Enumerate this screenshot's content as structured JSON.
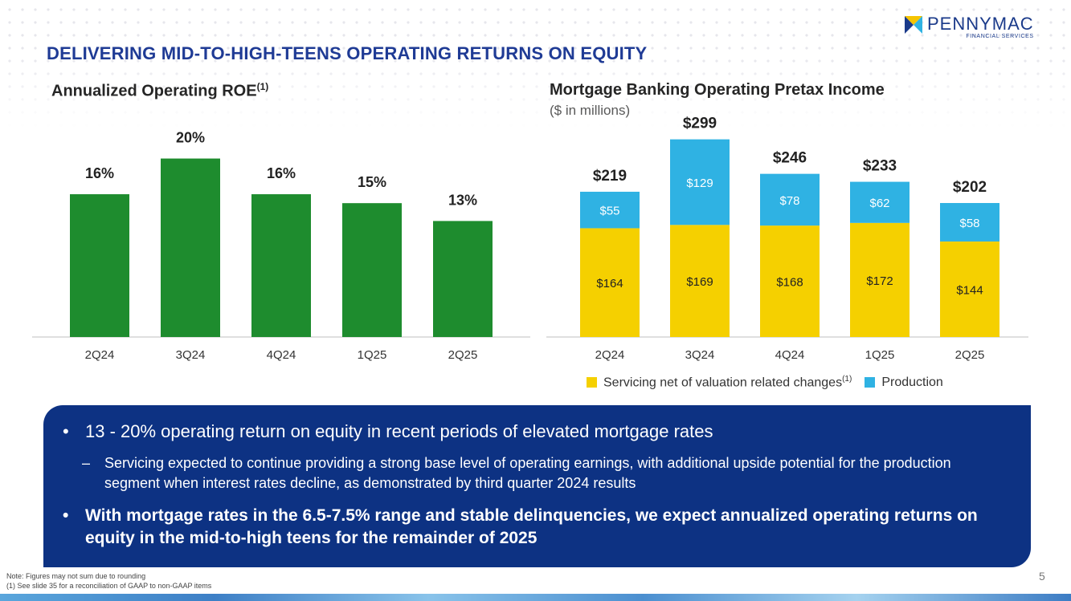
{
  "logo": {
    "name": "PENNYMAC",
    "sub": "FINANCIAL SERVICES"
  },
  "title": "DELIVERING MID-TO-HIGH-TEENS OPERATING RETURNS ON EQUITY",
  "colors": {
    "green": "#1e8c2e",
    "yellow": "#f5d000",
    "blue": "#2fb2e3",
    "navy": "#0d3283",
    "title": "#1f3b95"
  },
  "chart_data": [
    {
      "type": "bar",
      "title": "Annualized Operating ROE",
      "title_sup": "(1)",
      "categories": [
        "2Q24",
        "3Q24",
        "4Q24",
        "1Q25",
        "2Q25"
      ],
      "values": [
        16,
        20,
        16,
        15,
        13
      ],
      "labels": [
        "16%",
        "20%",
        "16%",
        "15%",
        "13%"
      ],
      "ylim": [
        0,
        20.5
      ],
      "xlabel": "",
      "ylabel": ""
    },
    {
      "type": "bar",
      "stacked": true,
      "title": "Mortgage Banking Operating Pretax Income",
      "subtitle": "($ in millions)",
      "categories": [
        "2Q24",
        "3Q24",
        "4Q24",
        "1Q25",
        "2Q25"
      ],
      "series": [
        {
          "name": "Servicing net of valuation related changes",
          "name_sup": "(1)",
          "values": [
            164,
            169,
            168,
            172,
            144
          ],
          "labels": [
            "$164",
            "$169",
            "$168",
            "$172",
            "$144"
          ]
        },
        {
          "name": "Production",
          "values": [
            55,
            129,
            78,
            62,
            58
          ],
          "labels": [
            "$55",
            "$129",
            "$78",
            "$62",
            "$58"
          ]
        }
      ],
      "totals": [
        "$219",
        "$299",
        "$246",
        "$233",
        "$202"
      ],
      "total_values": [
        219,
        299,
        246,
        233,
        202
      ],
      "ylim": [
        0,
        300
      ]
    }
  ],
  "commentary": {
    "bullet1": "13 - 20% operating return on equity in recent periods of elevated mortgage rates",
    "sub1": "Servicing expected to continue providing a strong base level of operating earnings, with additional upside potential for the production segment when interest rates decline, as demonstrated by third quarter 2024 results",
    "bullet2": "With mortgage rates in the 6.5-7.5% range and stable delinquencies, we expect annualized operating returns on equity in the mid-to-high teens for the remainder of 2025",
    "bullet_char": "•",
    "dash_char": "–"
  },
  "notes": {
    "line1": "Note: Figures may not sum due to rounding",
    "line2": "(1) See slide 35 for a reconciliation of GAAP to non-GAAP items"
  },
  "page_number": "5"
}
